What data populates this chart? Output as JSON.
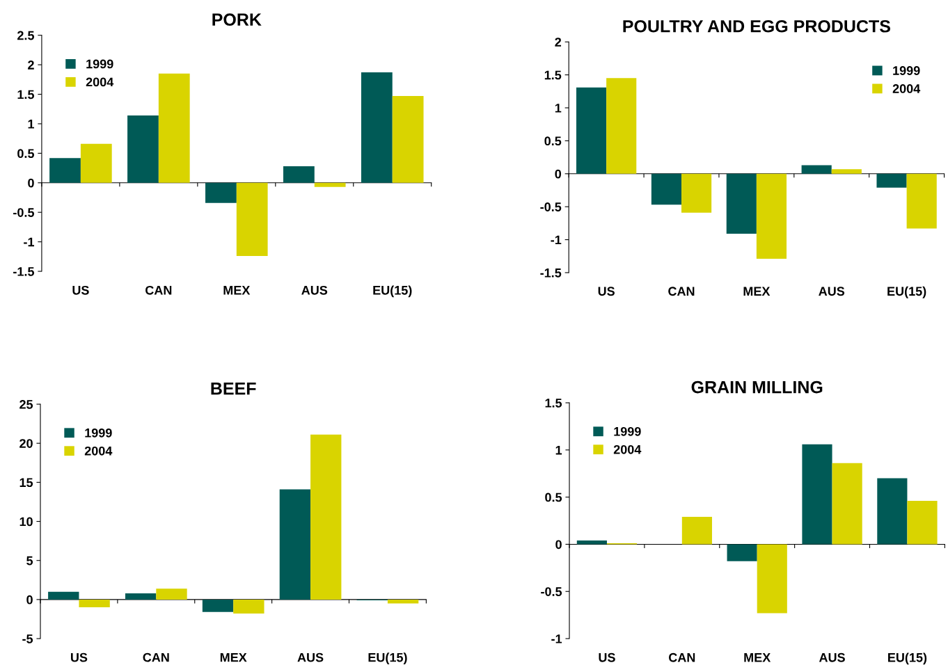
{
  "chart_data": [
    {
      "type": "bar",
      "title": "PORK",
      "categories": [
        "US",
        "CAN",
        "MEX",
        "AUS",
        "EU(15)"
      ],
      "ylim": [
        -1.5,
        2.5
      ],
      "yticks": [
        -1.5,
        -1,
        -0.5,
        0,
        0.5,
        1,
        1.5,
        2,
        2.5
      ],
      "legend": "top left",
      "series": [
        {
          "name": "1999",
          "color": "#005a56",
          "values": [
            0.42,
            1.14,
            -0.34,
            0.28,
            1.87
          ]
        },
        {
          "name": "2004",
          "color": "#d9d400",
          "values": [
            0.66,
            1.85,
            -1.24,
            -0.07,
            1.47
          ]
        }
      ]
    },
    {
      "type": "bar",
      "title": "POULTRY AND EGG PRODUCTS",
      "categories": [
        "US",
        "CAN",
        "MEX",
        "AUS",
        "EU(15)"
      ],
      "ylim": [
        -1.5,
        2
      ],
      "yticks": [
        -1.5,
        -1,
        -0.5,
        0,
        0.5,
        1,
        1.5,
        2
      ],
      "legend": "top right",
      "series": [
        {
          "name": "1999",
          "color": "#005a56",
          "values": [
            1.31,
            -0.47,
            -0.91,
            0.13,
            -0.21
          ]
        },
        {
          "name": "2004",
          "color": "#d9d400",
          "values": [
            1.45,
            -0.59,
            -1.29,
            0.07,
            -0.83
          ]
        }
      ]
    },
    {
      "type": "bar",
      "title": "BEEF",
      "categories": [
        "US",
        "CAN",
        "MEX",
        "AUS",
        "EU(15)"
      ],
      "ylim": [
        -5,
        25
      ],
      "yticks": [
        -5,
        0,
        5,
        10,
        15,
        20,
        25
      ],
      "legend": "top left",
      "series": [
        {
          "name": "1999",
          "color": "#005a56",
          "values": [
            1.0,
            0.8,
            -1.6,
            14.1,
            -0.1
          ]
        },
        {
          "name": "2004",
          "color": "#d9d400",
          "values": [
            -1.0,
            1.4,
            -1.8,
            21.1,
            -0.5
          ]
        }
      ]
    },
    {
      "type": "bar",
      "title": "GRAIN MILLING",
      "categories": [
        "US",
        "CAN",
        "MEX",
        "AUS",
        "EU(15)"
      ],
      "ylim": [
        -1,
        1.5
      ],
      "yticks": [
        -1,
        -0.5,
        0,
        0.5,
        1,
        1.5
      ],
      "legend": "top left",
      "series": [
        {
          "name": "1999",
          "color": "#005a56",
          "values": [
            0.04,
            0,
            -0.18,
            1.06,
            0.7
          ]
        },
        {
          "name": "2004",
          "color": "#d9d400",
          "values": [
            0.01,
            0.29,
            -0.73,
            0.86,
            0.46
          ]
        }
      ]
    }
  ]
}
